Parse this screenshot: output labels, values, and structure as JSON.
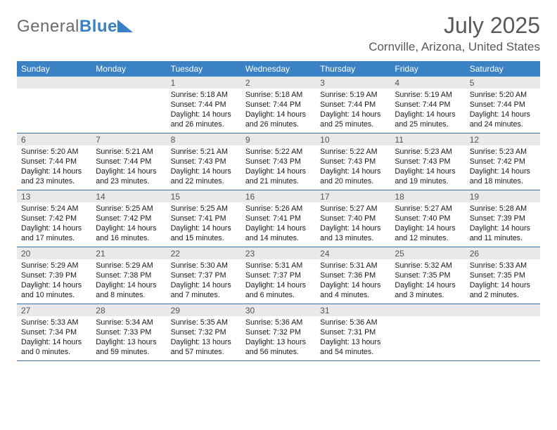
{
  "brand": {
    "name_a": "General",
    "name_b": "Blue"
  },
  "title": "July 2025",
  "location": "Cornville, Arizona, United States",
  "colors": {
    "header_bg": "#3b82c4",
    "week_border": "#3b6fa0",
    "daynum_bg": "#e9e9e9",
    "text_muted": "#595959"
  },
  "weekdays": [
    "Sunday",
    "Monday",
    "Tuesday",
    "Wednesday",
    "Thursday",
    "Friday",
    "Saturday"
  ],
  "weeks": [
    [
      null,
      null,
      {
        "n": "1",
        "sunrise": "5:18 AM",
        "sunset": "7:44 PM",
        "dayH": "14",
        "dayM": "26"
      },
      {
        "n": "2",
        "sunrise": "5:18 AM",
        "sunset": "7:44 PM",
        "dayH": "14",
        "dayM": "26"
      },
      {
        "n": "3",
        "sunrise": "5:19 AM",
        "sunset": "7:44 PM",
        "dayH": "14",
        "dayM": "25"
      },
      {
        "n": "4",
        "sunrise": "5:19 AM",
        "sunset": "7:44 PM",
        "dayH": "14",
        "dayM": "25"
      },
      {
        "n": "5",
        "sunrise": "5:20 AM",
        "sunset": "7:44 PM",
        "dayH": "14",
        "dayM": "24"
      }
    ],
    [
      {
        "n": "6",
        "sunrise": "5:20 AM",
        "sunset": "7:44 PM",
        "dayH": "14",
        "dayM": "23"
      },
      {
        "n": "7",
        "sunrise": "5:21 AM",
        "sunset": "7:44 PM",
        "dayH": "14",
        "dayM": "23"
      },
      {
        "n": "8",
        "sunrise": "5:21 AM",
        "sunset": "7:43 PM",
        "dayH": "14",
        "dayM": "22"
      },
      {
        "n": "9",
        "sunrise": "5:22 AM",
        "sunset": "7:43 PM",
        "dayH": "14",
        "dayM": "21"
      },
      {
        "n": "10",
        "sunrise": "5:22 AM",
        "sunset": "7:43 PM",
        "dayH": "14",
        "dayM": "20"
      },
      {
        "n": "11",
        "sunrise": "5:23 AM",
        "sunset": "7:43 PM",
        "dayH": "14",
        "dayM": "19"
      },
      {
        "n": "12",
        "sunrise": "5:23 AM",
        "sunset": "7:42 PM",
        "dayH": "14",
        "dayM": "18"
      }
    ],
    [
      {
        "n": "13",
        "sunrise": "5:24 AM",
        "sunset": "7:42 PM",
        "dayH": "14",
        "dayM": "17"
      },
      {
        "n": "14",
        "sunrise": "5:25 AM",
        "sunset": "7:42 PM",
        "dayH": "14",
        "dayM": "16"
      },
      {
        "n": "15",
        "sunrise": "5:25 AM",
        "sunset": "7:41 PM",
        "dayH": "14",
        "dayM": "15"
      },
      {
        "n": "16",
        "sunrise": "5:26 AM",
        "sunset": "7:41 PM",
        "dayH": "14",
        "dayM": "14"
      },
      {
        "n": "17",
        "sunrise": "5:27 AM",
        "sunset": "7:40 PM",
        "dayH": "14",
        "dayM": "13"
      },
      {
        "n": "18",
        "sunrise": "5:27 AM",
        "sunset": "7:40 PM",
        "dayH": "14",
        "dayM": "12"
      },
      {
        "n": "19",
        "sunrise": "5:28 AM",
        "sunset": "7:39 PM",
        "dayH": "14",
        "dayM": "11"
      }
    ],
    [
      {
        "n": "20",
        "sunrise": "5:29 AM",
        "sunset": "7:39 PM",
        "dayH": "14",
        "dayM": "10"
      },
      {
        "n": "21",
        "sunrise": "5:29 AM",
        "sunset": "7:38 PM",
        "dayH": "14",
        "dayM": "8"
      },
      {
        "n": "22",
        "sunrise": "5:30 AM",
        "sunset": "7:37 PM",
        "dayH": "14",
        "dayM": "7"
      },
      {
        "n": "23",
        "sunrise": "5:31 AM",
        "sunset": "7:37 PM",
        "dayH": "14",
        "dayM": "6"
      },
      {
        "n": "24",
        "sunrise": "5:31 AM",
        "sunset": "7:36 PM",
        "dayH": "14",
        "dayM": "4"
      },
      {
        "n": "25",
        "sunrise": "5:32 AM",
        "sunset": "7:35 PM",
        "dayH": "14",
        "dayM": "3"
      },
      {
        "n": "26",
        "sunrise": "5:33 AM",
        "sunset": "7:35 PM",
        "dayH": "14",
        "dayM": "2"
      }
    ],
    [
      {
        "n": "27",
        "sunrise": "5:33 AM",
        "sunset": "7:34 PM",
        "dayH": "14",
        "dayM": "0"
      },
      {
        "n": "28",
        "sunrise": "5:34 AM",
        "sunset": "7:33 PM",
        "dayH": "13",
        "dayM": "59"
      },
      {
        "n": "29",
        "sunrise": "5:35 AM",
        "sunset": "7:32 PM",
        "dayH": "13",
        "dayM": "57"
      },
      {
        "n": "30",
        "sunrise": "5:36 AM",
        "sunset": "7:32 PM",
        "dayH": "13",
        "dayM": "56"
      },
      {
        "n": "31",
        "sunrise": "5:36 AM",
        "sunset": "7:31 PM",
        "dayH": "13",
        "dayM": "54"
      },
      null,
      null
    ]
  ],
  "labels": {
    "sunrise": "Sunrise:",
    "sunset": "Sunset:",
    "daylight": "Daylight:",
    "hours": "hours",
    "and": "and",
    "minutes": "minutes."
  }
}
